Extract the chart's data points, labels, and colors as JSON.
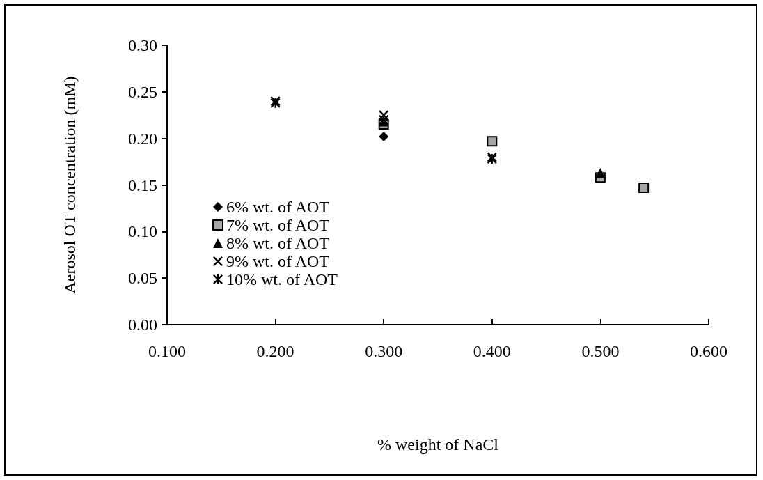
{
  "chart_data": {
    "type": "scatter",
    "xlabel": "% weight of NaCl",
    "ylabel": "Aerosol OT concentration (mM)",
    "xlim": [
      0.1,
      0.6
    ],
    "xticks": [
      {
        "value": 0.1,
        "label": "0.100"
      },
      {
        "value": 0.2,
        "label": "0.200"
      },
      {
        "value": 0.3,
        "label": "0.300"
      },
      {
        "value": 0.4,
        "label": "0.400"
      },
      {
        "value": 0.5,
        "label": "0.500"
      },
      {
        "value": 0.6,
        "label": "0.600"
      }
    ],
    "ylim": [
      0,
      0.3
    ],
    "yticks": [
      {
        "value": 0,
        "label": "0.00"
      },
      {
        "value": 0.05,
        "label": "0.05"
      },
      {
        "value": 0.1,
        "label": "0.10"
      },
      {
        "value": 0.15,
        "label": "0.15"
      },
      {
        "value": 0.2,
        "label": "0.20"
      },
      {
        "value": 0.25,
        "label": "0.25"
      },
      {
        "value": 0.3,
        "label": "0.30"
      }
    ],
    "grid": false,
    "legend": "bottom left",
    "series": [
      {
        "name": "6% wt. of AOT",
        "color": "#000000",
        "marker": "diamond",
        "x": [
          0.3
        ],
        "values": [
          0.202
        ]
      },
      {
        "name": "7% wt. of AOT",
        "color": "#a6a6a6",
        "marker": "square",
        "x": [
          0.3,
          0.4,
          0.5,
          0.54
        ],
        "values": [
          0.215,
          0.197,
          0.158,
          0.147
        ]
      },
      {
        "name": "8% wt. of AOT",
        "color": "#000000",
        "marker": "triangle",
        "x": [
          0.3,
          0.5
        ],
        "values": [
          0.218,
          0.163
        ]
      },
      {
        "name": "9% wt. of AOT",
        "color": "#000000",
        "marker": "cross",
        "x": [
          0.2,
          0.3,
          0.4
        ],
        "values": [
          0.24,
          0.225,
          0.18
        ]
      },
      {
        "name": "10% wt. of AOT",
        "color": "#000000",
        "marker": "star",
        "x": [
          0.2,
          0.3,
          0.4
        ],
        "values": [
          0.238,
          0.22,
          0.178
        ]
      }
    ]
  }
}
